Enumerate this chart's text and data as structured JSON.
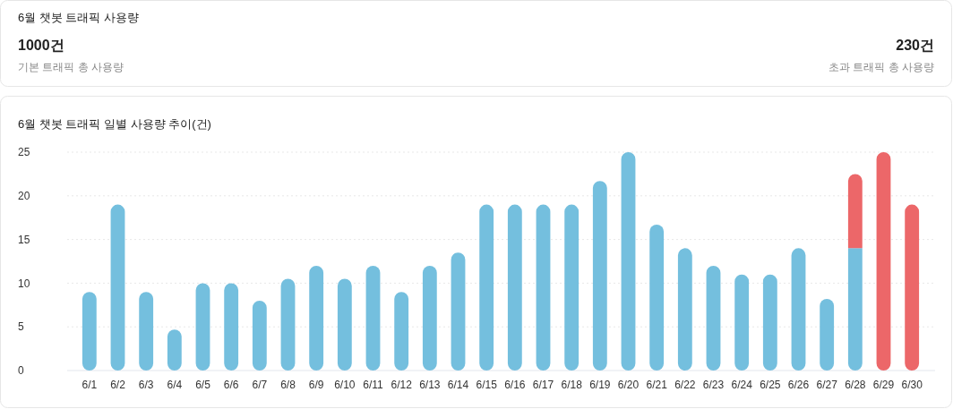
{
  "chart_data": [
    {
      "type": "other",
      "title": "6월 챗봇 트래픽 사용량",
      "annotations": [
        "1000건",
        "기본 트래픽 총 사용량",
        "230건",
        "초과 트래픽 총 사용량"
      ]
    },
    {
      "type": "bar",
      "title": "6월 챗봇 트래픽 일별 사용량 추이(건)",
      "categories": [
        "6/1",
        "6/2",
        "6/3",
        "6/4",
        "6/5",
        "6/6",
        "6/7",
        "6/8",
        "6/9",
        "6/10",
        "6/11",
        "6/12",
        "6/13",
        "6/14",
        "6/15",
        "6/16",
        "6/17",
        "6/18",
        "6/19",
        "6/20",
        "6/21",
        "6/22",
        "6/23",
        "6/24",
        "6/25",
        "6/26",
        "6/27",
        "6/28",
        "6/29",
        "6/30"
      ],
      "series": [
        {
          "color": "#74bfde",
          "values": [
            9,
            19,
            9,
            4.7,
            10,
            10,
            8,
            10.5,
            12,
            10.5,
            12,
            9,
            12,
            13.5,
            19,
            19,
            19,
            19,
            21.7,
            25,
            16.7,
            14,
            12,
            11,
            11,
            14,
            8.2,
            14,
            null,
            null
          ]
        },
        {
          "color": "#ec6769",
          "values": [
            null,
            null,
            null,
            null,
            null,
            null,
            null,
            null,
            null,
            null,
            null,
            null,
            null,
            null,
            null,
            null,
            null,
            null,
            null,
            null,
            null,
            null,
            null,
            null,
            null,
            null,
            null,
            8.5,
            25,
            19
          ]
        }
      ],
      "stacked": true,
      "ylim": [
        0,
        25
      ],
      "yticks": [
        0,
        5,
        10,
        15,
        20,
        25
      ],
      "grid": "y"
    }
  ]
}
